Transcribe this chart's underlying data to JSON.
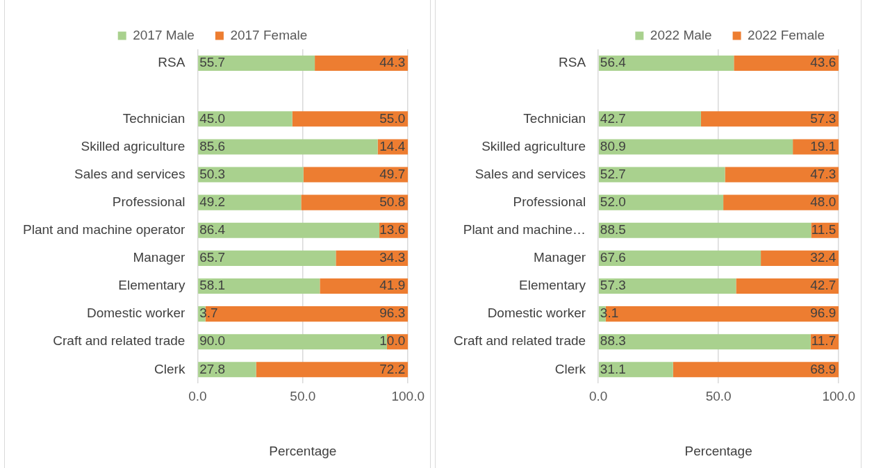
{
  "chart_data": [
    {
      "type": "bar",
      "orientation": "horizontal",
      "stacked": true,
      "xlabel": "Percentage",
      "legend": "top",
      "grid": "x",
      "categories": [
        "RSA",
        null,
        "Technician",
        "Skilled agriculture",
        "Sales and services",
        "Professional",
        "Plant and machine operator",
        "Manager",
        "Elementary",
        "Domestic worker",
        "Craft and related trade",
        "Clerk"
      ],
      "xlim": [
        0,
        100
      ],
      "xticks": [
        {
          "value": 0,
          "label": "0.0"
        },
        {
          "value": 50,
          "label": "50.0"
        },
        {
          "value": 100,
          "label": "100.0"
        }
      ],
      "series": [
        {
          "name": "2017 Male",
          "color": "#a9d18e",
          "values": [
            55.7,
            null,
            45,
            85.6,
            50.3,
            49.2,
            86.4,
            65.7,
            58.1,
            3.7,
            90,
            27.8
          ],
          "value_labels": [
            "55.7",
            null,
            "45.0",
            "85.6",
            "50.3",
            "49.2",
            "86.4",
            "65.7",
            "58.1",
            "3.7",
            "90.0",
            "27.8"
          ]
        },
        {
          "name": "2017 Female",
          "color": "#ed7d31",
          "values": [
            44.3,
            null,
            55,
            14.4,
            49.7,
            50.8,
            13.6,
            34.3,
            41.9,
            96.3,
            10,
            72.2
          ],
          "value_labels": [
            "44.3",
            null,
            "55.0",
            "14.4",
            "49.7",
            "50.8",
            "13.6",
            "34.3",
            "41.9",
            "96.3",
            "10.0",
            "72.2"
          ]
        }
      ]
    },
    {
      "type": "bar",
      "orientation": "horizontal",
      "stacked": true,
      "xlabel": "Percentage",
      "legend": "top right",
      "grid": "x",
      "categories": [
        "RSA",
        null,
        "Technician",
        "Skilled agriculture",
        "Sales and services",
        "Professional",
        "Plant and machine…",
        "Manager",
        "Elementary",
        "Domestic worker",
        "Craft and related trade",
        "Clerk"
      ],
      "xlim": [
        0,
        100
      ],
      "xticks": [
        {
          "value": 0,
          "label": "0.0"
        },
        {
          "value": 50,
          "label": "50.0"
        },
        {
          "value": 100,
          "label": "100.0"
        }
      ],
      "series": [
        {
          "name": "2022 Male",
          "color": "#a9d18e",
          "values": [
            56.4,
            null,
            42.7,
            80.9,
            52.7,
            52,
            88.5,
            67.6,
            57.3,
            3.1,
            88.3,
            31.1
          ],
          "value_labels": [
            "56.4",
            null,
            "42.7",
            "80.9",
            "52.7",
            "52.0",
            "88.5",
            "67.6",
            "57.3",
            "3.1",
            "88.3",
            "31.1"
          ]
        },
        {
          "name": "2022 Female",
          "color": "#ed7d31",
          "values": [
            43.6,
            null,
            57.3,
            19.1,
            47.3,
            48,
            11.5,
            32.4,
            42.7,
            96.9,
            11.7,
            68.9
          ],
          "value_labels": [
            "43.6",
            null,
            "57.3",
            "19.1",
            "47.3",
            "48.0",
            "11.5",
            "32.4",
            "42.7",
            "96.9",
            "11.7",
            "68.9"
          ]
        }
      ]
    }
  ]
}
